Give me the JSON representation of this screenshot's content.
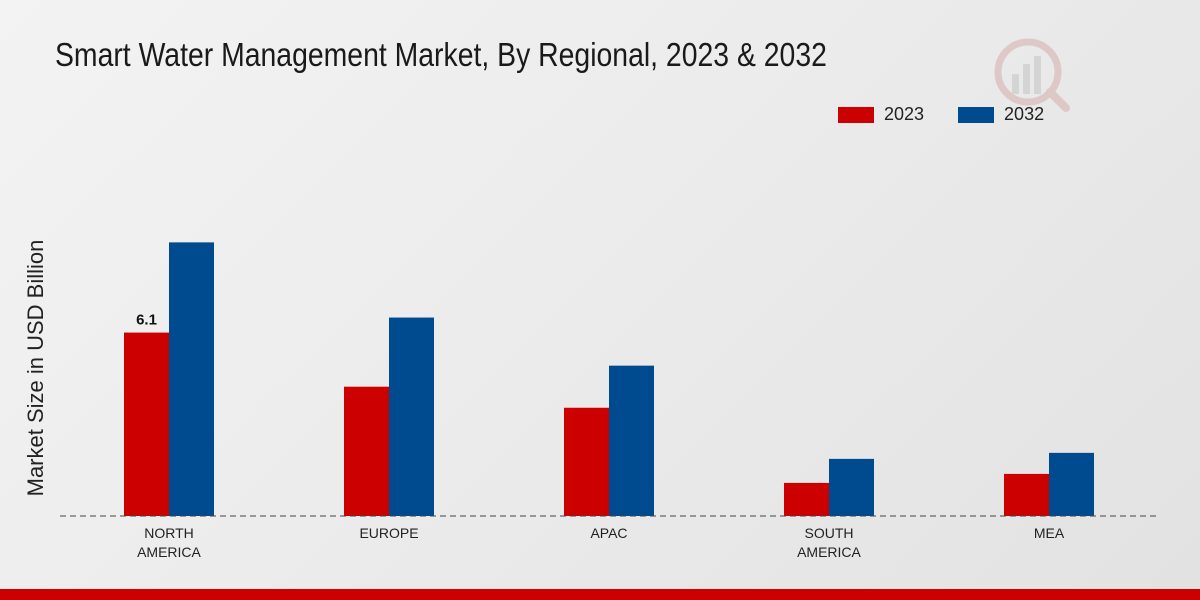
{
  "chart_data": {
    "type": "bar",
    "title": "Smart Water Management Market, By Regional, 2023 & 2032",
    "ylabel": "Market Size in USD Billion",
    "xlabel": "",
    "categories": [
      [
        "NORTH",
        "AMERICA"
      ],
      [
        "EUROPE"
      ],
      [
        "APAC"
      ],
      [
        "SOUTH",
        "AMERICA"
      ],
      [
        "MEA"
      ]
    ],
    "series": [
      {
        "name": "2023",
        "values": [
          6.1,
          4.3,
          3.6,
          1.1,
          1.4
        ],
        "color": "#cc0000"
      },
      {
        "name": "2032",
        "values": [
          9.1,
          6.6,
          5.0,
          1.9,
          2.1
        ],
        "color": "#004a8f"
      }
    ],
    "data_labels": [
      {
        "series": 0,
        "index": 0,
        "text": "6.1"
      }
    ],
    "ylim": [
      0,
      14.5
    ],
    "grid": false,
    "legend_position": "top-right"
  }
}
